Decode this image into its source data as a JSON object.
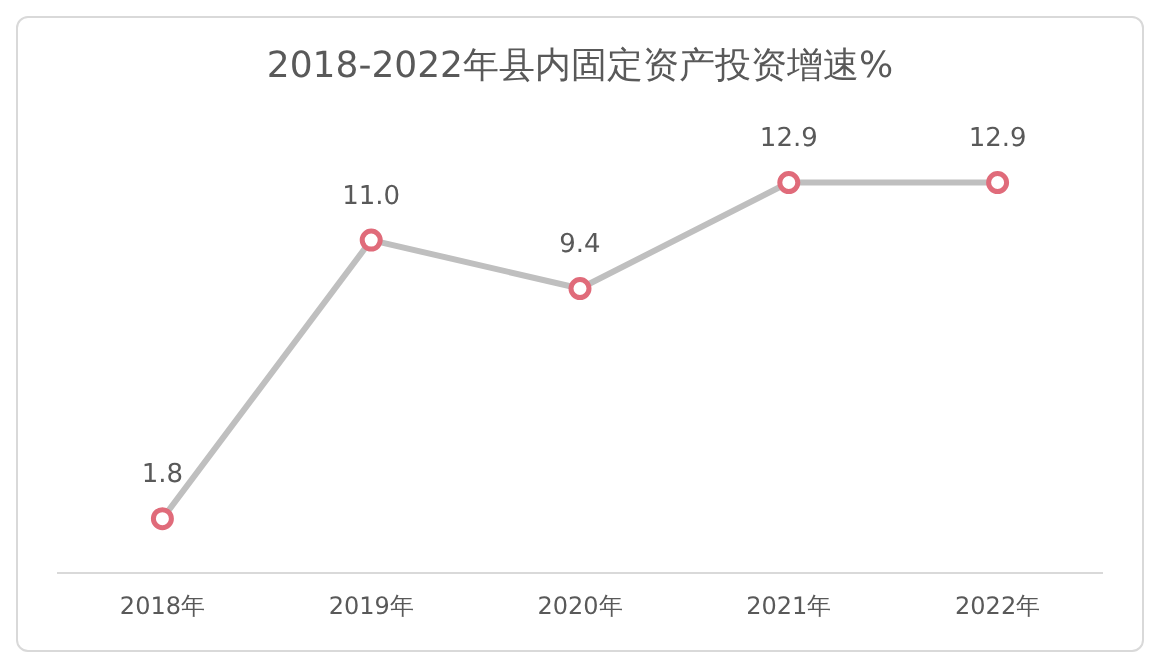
{
  "chart_data": {
    "type": "line",
    "title": "2018-2022年县内固定资产投资增速%",
    "categories": [
      "2018年",
      "2019年",
      "2020年",
      "2021年",
      "2022年"
    ],
    "series": [
      {
        "color": "#bfbfbf",
        "values": [
          1.8,
          11.0,
          9.4,
          12.9,
          12.9
        ],
        "value_labels": [
          "1.8",
          "11.0",
          "9.4",
          "12.9",
          "12.9"
        ]
      }
    ],
    "marker": "circle",
    "line_style": "solid",
    "grid": false,
    "legend": false,
    "tick_labels": "x"
  }
}
